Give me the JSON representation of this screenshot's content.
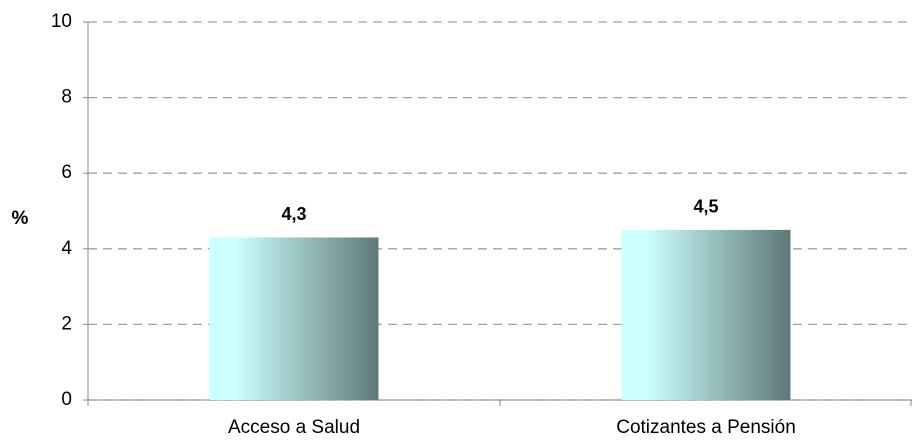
{
  "chart_data": {
    "type": "bar",
    "y_label": "%",
    "categories": [
      "Acceso a Salud",
      "Cotizantes a Pensión"
    ],
    "values": [
      4.3,
      4.5
    ],
    "value_labels": [
      "4,3",
      "4,5"
    ],
    "gradient": [
      "#ccffff",
      "#5e7876"
    ],
    "ylim": [
      0,
      10
    ],
    "yticks": [
      0,
      2,
      4,
      6,
      8,
      10
    ],
    "grid": true
  }
}
